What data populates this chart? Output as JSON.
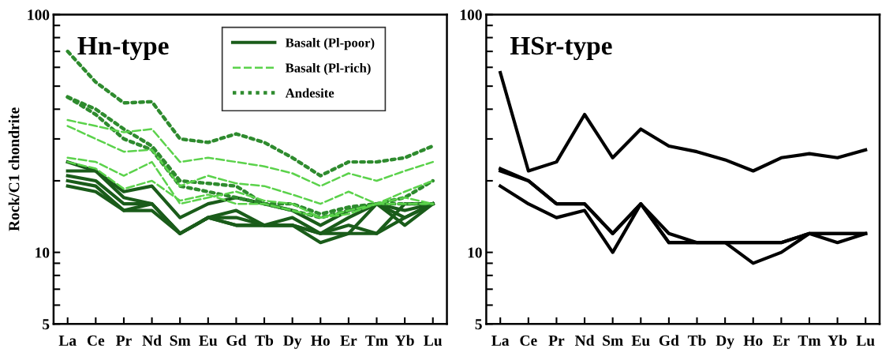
{
  "chart_data": [
    {
      "type": "line",
      "title": "Hn-type",
      "ylabel": "Rock/C1 chondrite",
      "log": "y",
      "grid": false,
      "legend": "top right",
      "marker": "none",
      "categories": [
        "La",
        "Ce",
        "Pr",
        "Nd",
        "Sm",
        "Eu",
        "Gd",
        "Tb",
        "Dy",
        "Ho",
        "Er",
        "Tm",
        "Yb",
        "Lu"
      ],
      "ylim": [
        5,
        100
      ],
      "yticks": [
        5,
        {
          "value": 6,
          "label": null
        },
        {
          "value": 7,
          "label": null
        },
        {
          "value": 8,
          "label": null
        },
        {
          "value": 9,
          "label": null
        },
        10,
        {
          "value": 20,
          "label": null
        },
        {
          "value": 30,
          "label": null
        },
        {
          "value": 40,
          "label": null
        },
        {
          "value": 50,
          "label": null
        },
        {
          "value": 60,
          "label": null
        },
        {
          "value": 70,
          "label": null
        },
        {
          "value": 80,
          "label": null
        },
        {
          "value": 90,
          "label": null
        },
        100
      ],
      "series": [
        {
          "color": "#1a5c1a",
          "line_style": "solid",
          "values": [
            24,
            22,
            18,
            19,
            14,
            16,
            17,
            16,
            15,
            13,
            15,
            16,
            15,
            16
          ]
        },
        {
          "color": "#1a5c1a",
          "line_style": "solid",
          "values": [
            22,
            22,
            17,
            16,
            12,
            14,
            15,
            13,
            14,
            12,
            14,
            16,
            14,
            16
          ]
        },
        {
          "color": "#1a5c1a",
          "line_style": "solid",
          "values": [
            21,
            20,
            16,
            16,
            12,
            14,
            14,
            13,
            13,
            12,
            13,
            12,
            14,
            16
          ]
        },
        {
          "color": "#1a5c1a",
          "line_style": "solid",
          "values": [
            20,
            19,
            15,
            16,
            12,
            14,
            13,
            13,
            13,
            11,
            12,
            16,
            13,
            16
          ]
        },
        {
          "name": "Basalt (Pl-poor)",
          "color": "#1a5c1a",
          "line_style": "solid",
          "values": [
            19,
            18,
            15,
            15,
            12,
            14,
            13,
            13,
            13,
            12,
            12,
            12,
            16,
            16
          ]
        },
        {
          "color": "#5bd24b",
          "line_style": "dashed",
          "values": [
            36,
            34,
            32,
            33,
            24,
            25,
            24,
            23,
            21.5,
            19,
            21.5,
            20,
            22,
            24
          ]
        },
        {
          "color": "#5bd24b",
          "line_style": "dashed",
          "values": [
            34,
            30,
            26.5,
            27,
            19,
            21,
            19.5,
            19,
            17.5,
            16,
            18,
            16,
            16,
            16
          ]
        },
        {
          "color": "#5bd24b",
          "line_style": "dashed",
          "values": [
            25,
            24,
            21,
            24,
            16,
            17,
            18,
            16.5,
            16,
            14,
            14.5,
            16,
            18,
            20
          ]
        },
        {
          "name": "Basalt (Pl-rich)",
          "color": "#5bd24b",
          "line_style": "dashed",
          "values": [
            24,
            22.5,
            18.5,
            20,
            16.5,
            17.5,
            16,
            16,
            15,
            14,
            15,
            16,
            17,
            16
          ]
        },
        {
          "color": "#2e8b2e",
          "line_style": "dotted",
          "values": [
            70,
            52,
            42.5,
            43,
            30,
            29,
            31.5,
            29,
            25,
            21,
            24,
            24,
            25,
            28
          ]
        },
        {
          "color": "#2e8b2e",
          "line_style": "dotted",
          "values": [
            45,
            40,
            33,
            28,
            20,
            19.5,
            19,
            16,
            16,
            14.5,
            15.5,
            16,
            17,
            20
          ]
        },
        {
          "name": "Andesite",
          "color": "#2e8b2e",
          "line_style": "dotted",
          "values": [
            45,
            38,
            30,
            27,
            19,
            18,
            17,
            16,
            15,
            14,
            15,
            16,
            16,
            16
          ]
        }
      ]
    },
    {
      "type": "line",
      "title": "HSr-type",
      "log": "y",
      "grid": false,
      "marker": "none",
      "categories": [
        "La",
        "Ce",
        "Pr",
        "Nd",
        "Sm",
        "Eu",
        "Gd",
        "Tb",
        "Dy",
        "Ho",
        "Er",
        "Tm",
        "Yb",
        "Lu"
      ],
      "ylim": [
        5,
        100
      ],
      "yticks": [
        5,
        {
          "value": 6,
          "label": null
        },
        {
          "value": 7,
          "label": null
        },
        {
          "value": 8,
          "label": null
        },
        {
          "value": 9,
          "label": null
        },
        10,
        {
          "value": 20,
          "label": null
        },
        {
          "value": 30,
          "label": null
        },
        {
          "value": 40,
          "label": null
        },
        {
          "value": 50,
          "label": null
        },
        {
          "value": 60,
          "label": null
        },
        {
          "value": 70,
          "label": null
        },
        {
          "value": 80,
          "label": null
        },
        {
          "value": 90,
          "label": null
        },
        100
      ],
      "series": [
        {
          "color": "#000000",
          "line_style": "solid",
          "values": [
            57,
            22,
            24,
            38,
            25,
            33,
            28,
            26.5,
            24.5,
            22,
            25,
            26,
            25,
            27
          ]
        },
        {
          "color": "#000000",
          "line_style": "solid",
          "values": [
            22.5,
            20,
            16,
            16,
            12,
            16,
            12,
            11,
            11,
            11,
            11,
            12,
            12,
            12
          ]
        },
        {
          "color": "#000000",
          "line_style": "solid",
          "values": [
            22,
            20,
            16,
            16,
            12,
            16,
            11,
            11,
            11,
            9,
            10,
            12,
            12,
            12
          ]
        },
        {
          "color": "#000000",
          "line_style": "solid",
          "values": [
            19,
            16,
            14,
            15,
            10,
            16,
            11,
            11,
            11,
            11,
            11,
            12,
            11,
            12
          ]
        }
      ]
    }
  ]
}
